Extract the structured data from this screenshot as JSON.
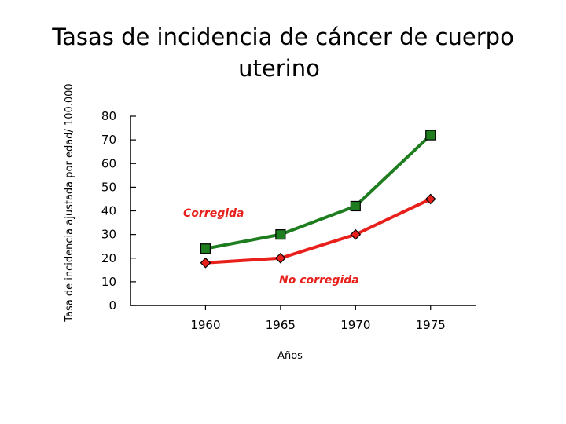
{
  "chart_data": {
    "type": "line",
    "title_lines": [
      "Tasas de incidencia de cáncer de cuerpo",
      "uterino"
    ],
    "xlabel": "Años",
    "ylabel": "Tasa de incidencia ajustada por edad/ 100.000",
    "xlim": [
      1955,
      1978
    ],
    "ylim": [
      0,
      80
    ],
    "xticks": [
      1960,
      1965,
      1970,
      1975
    ],
    "yticks": [
      0,
      10,
      20,
      30,
      40,
      50,
      60,
      70,
      80
    ],
    "series": [
      {
        "name": "Corregida",
        "color": "#1e7d1e",
        "marker": "square",
        "x": [
          1960,
          1965,
          1970,
          1975
        ],
        "y": [
          24,
          30,
          42,
          72
        ]
      },
      {
        "name": "No corregida",
        "color": "#e8201c",
        "marker": "diamond",
        "x": [
          1960,
          1965,
          1970,
          1975
        ],
        "y": [
          18,
          20,
          30,
          45
        ]
      }
    ]
  }
}
